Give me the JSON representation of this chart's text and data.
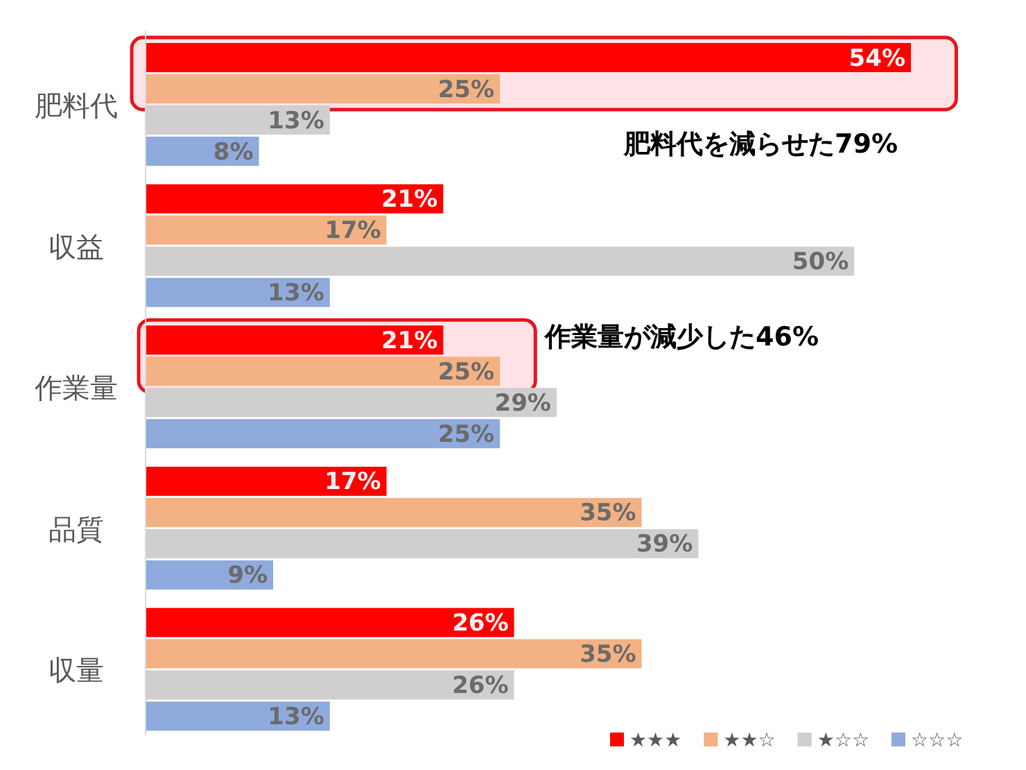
{
  "chart_data": {
    "type": "bar",
    "orientation": "horizontal",
    "categories": [
      "肥料代",
      "収益",
      "作業量",
      "品質",
      "収量"
    ],
    "series": [
      {
        "name": "★★★",
        "color": "#ff0000",
        "values": [
          54,
          21,
          21,
          17,
          26
        ],
        "value_labels": [
          "54%",
          "21%",
          "21%",
          "17%",
          "26%"
        ]
      },
      {
        "name": "★★☆",
        "color": "#f4b183",
        "values": [
          25,
          17,
          25,
          35,
          35
        ],
        "value_labels": [
          "25%",
          "17%",
          "25%",
          "35%",
          "35%"
        ]
      },
      {
        "name": "★☆☆",
        "color": "#d0cece",
        "values": [
          13,
          50,
          29,
          39,
          26
        ],
        "value_labels": [
          "13%",
          "50%",
          "29%",
          "39%",
          "26%"
        ]
      },
      {
        "name": "☆☆☆",
        "color": "#8faadc",
        "values": [
          8,
          13,
          25,
          9,
          13
        ],
        "value_labels": [
          "8%",
          "13%",
          "25%",
          "9%",
          "13%"
        ]
      }
    ],
    "annotations": [
      "肥料代を減らせた79%",
      "作業量が減少した46%"
    ],
    "legend": "bottom right"
  }
}
